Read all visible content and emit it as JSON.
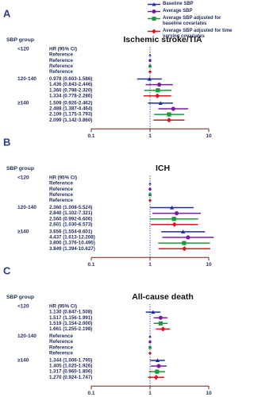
{
  "legend": {
    "series": [
      {
        "name": "Baseline SBP",
        "color": "#1f2f9a",
        "marker": "triangle"
      },
      {
        "name": "Average SBP",
        "color": "#7b1fa2",
        "marker": "circle"
      },
      {
        "name": "Average SBP adjusted for baseline covariates",
        "color": "#1a9a3a",
        "marker": "square"
      },
      {
        "name": "Average SBP adjusted for time varying covariates",
        "color": "#e0141e",
        "marker": "diamond"
      }
    ]
  },
  "chart_data": [
    {
      "type": "forest",
      "panel_label": "A",
      "title": "Ischemic stroke/TIA",
      "group_header": "SBP group",
      "column_header": "HR (95% CI)",
      "xscale": "log",
      "xlim": [
        0.1,
        10
      ],
      "xticks": [
        0.1,
        1,
        10
      ],
      "reference_line": 1,
      "groups": [
        {
          "name": "<120",
          "rows": [
            {
              "label": "Reference",
              "hr": 1
            },
            {
              "label": "Reference",
              "hr": 1
            },
            {
              "label": "Reference",
              "hr": 1
            },
            {
              "label": "Reference",
              "hr": 1
            }
          ]
        },
        {
          "name": "120-140",
          "rows": [
            {
              "label": "0.978 (0.603-1.586)",
              "hr": 0.978,
              "lo": 0.603,
              "hi": 1.586
            },
            {
              "label": "1.436 (0.843-2.446)",
              "hr": 1.436,
              "lo": 0.843,
              "hi": 2.446
            },
            {
              "label": "1.360 (0.798-2.320)",
              "hr": 1.36,
              "lo": 0.798,
              "hi": 2.32
            },
            {
              "label": "1.334 (0.778-2.286)",
              "hr": 1.334,
              "lo": 0.778,
              "hi": 2.286
            }
          ]
        },
        {
          "name": "≥140",
          "rows": [
            {
              "label": "1.509 (0.926-2.462)",
              "hr": 1.509,
              "lo": 0.926,
              "hi": 2.462
            },
            {
              "label": "2.488 (1.387-4.464)",
              "hr": 2.488,
              "lo": 1.387,
              "hi": 4.464
            },
            {
              "label": "2.109 (1.175-3.793)",
              "hr": 2.109,
              "lo": 1.175,
              "hi": 3.793
            },
            {
              "label": "2.099 (1.142-3.860)",
              "hr": 2.099,
              "lo": 1.142,
              "hi": 3.86
            }
          ]
        }
      ]
    },
    {
      "type": "forest",
      "panel_label": "B",
      "title": "ICH",
      "group_header": "SBP group",
      "column_header": "HR (95% CI)",
      "xscale": "log",
      "xlim": [
        0.1,
        10
      ],
      "xticks": [
        0.1,
        1,
        10
      ],
      "reference_line": 1,
      "groups": [
        {
          "name": "<120",
          "rows": [
            {
              "label": "Reference",
              "hr": 1
            },
            {
              "label": "Reference",
              "hr": 1
            },
            {
              "label": "Reference",
              "hr": 1
            },
            {
              "label": "Reference",
              "hr": 1
            }
          ]
        },
        {
          "name": "120-140",
          "rows": [
            {
              "label": "2.360 (1.008-5.524)",
              "hr": 2.36,
              "lo": 1.008,
              "hi": 5.524
            },
            {
              "label": "2.840 (1.102-7.321)",
              "hr": 2.84,
              "lo": 1.102,
              "hi": 7.321
            },
            {
              "label": "2.560 (0.992-6.606)",
              "hr": 2.56,
              "lo": 0.992,
              "hi": 6.606
            },
            {
              "label": "2.601 (1.030-6.573)",
              "hr": 2.601,
              "lo": 1.03,
              "hi": 6.573
            }
          ]
        },
        {
          "name": "≥140",
          "rows": [
            {
              "label": "3.656 (1.554-8.601)",
              "hr": 3.656,
              "lo": 1.554,
              "hi": 8.601
            },
            {
              "label": "4.437 (1.613-12.208)",
              "hr": 4.437,
              "lo": 1.613,
              "hi": 12.208
            },
            {
              "label": "3.800 (1.376-10.495)",
              "hr": 3.8,
              "lo": 1.376,
              "hi": 10.495
            },
            {
              "label": "3.849 (1.394-10.627)",
              "hr": 3.849,
              "lo": 1.394,
              "hi": 10.627
            }
          ]
        }
      ]
    },
    {
      "type": "forest",
      "panel_label": "C",
      "title": "All-cause death",
      "group_header": "SBP group",
      "column_header": "HR (95% CI)",
      "xscale": "log",
      "xlim": [
        0.1,
        10
      ],
      "xticks": [
        0.1,
        1,
        10
      ],
      "reference_line": 1,
      "groups": [
        {
          "name": "<120",
          "rows": [
            {
              "label": "1.130 (0.847-1.508)",
              "hr": 1.13,
              "lo": 0.847,
              "hi": 1.508
            },
            {
              "label": "1.517 (1.156-1.991)",
              "hr": 1.517,
              "lo": 1.156,
              "hi": 1.991
            },
            {
              "label": "1.519 (1.154-2.000)",
              "hr": 1.519,
              "lo": 1.154,
              "hi": 2.0
            },
            {
              "label": "1.661 (1.255-2.198)",
              "hr": 1.661,
              "lo": 1.255,
              "hi": 2.198
            }
          ]
        },
        {
          "name": "120-140",
          "rows": [
            {
              "label": "Reference",
              "hr": 1
            },
            {
              "label": "Reference",
              "hr": 1
            },
            {
              "label": "Reference",
              "hr": 1
            },
            {
              "label": "Reference",
              "hr": 1
            }
          ]
        },
        {
          "name": "≥140",
          "rows": [
            {
              "label": "1.344 (1.006-1.795)",
              "hr": 1.344,
              "lo": 1.006,
              "hi": 1.795
            },
            {
              "label": "1.405 (1.025-1.926)",
              "hr": 1.405,
              "lo": 1.025,
              "hi": 1.926
            },
            {
              "label": "1.317 (0.960-1.806)",
              "hr": 1.317,
              "lo": 0.96,
              "hi": 1.806
            },
            {
              "label": "1.270 (0.924-1.747)",
              "hr": 1.27,
              "lo": 0.924,
              "hi": 1.747
            }
          ]
        }
      ]
    }
  ]
}
